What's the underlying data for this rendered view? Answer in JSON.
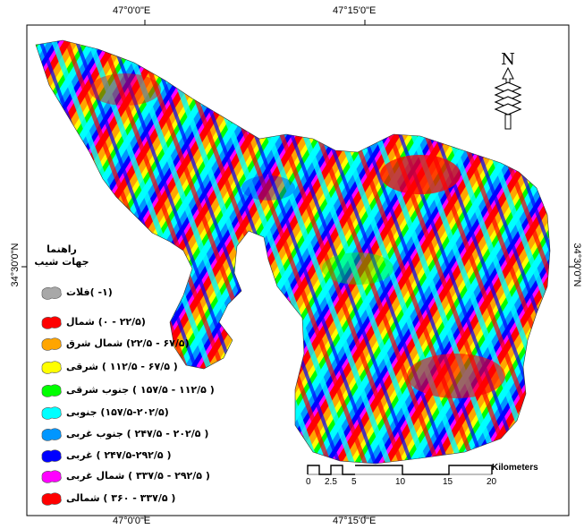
{
  "coordinates": {
    "top_left": "47°0'0\"E",
    "top_right": "47°15'0\"E",
    "bottom_left": "47°0'0\"E",
    "bottom_right": "47°15'0\"E",
    "left": "34°30'0\"N",
    "right": "34°30'0\"N"
  },
  "legend": {
    "title_line1": "راهنما",
    "title_line2": "جهات شیب",
    "items": [
      {
        "label": "(۱- )فلات",
        "color": "#a8a8a8"
      },
      {
        "label": "(۲۲/۵ - ۰) شمال",
        "color": "#ff0000"
      },
      {
        "label": "(۶۷/۵ - ۲۲/۵) شمال شرق",
        "color": "#ffa500"
      },
      {
        "label": "( ۶۷/۵ - ۱۱۲/۵ ) شرقی",
        "color": "#ffff00"
      },
      {
        "label": "( ۱۱۲/۵ - ۱۵۷/۵ ) جنوب شرقی",
        "color": "#00ff00"
      },
      {
        "label": "(۱۵۷/۵-۲۰۲/۵) جنوبی",
        "color": "#00ffff"
      },
      {
        "label": "( ۲۰۲/۵ - ۲۴۷/۵ ) جنوب غربی",
        "color": "#0096ff"
      },
      {
        "label": "( ۲۴۷/۵-۲۹۲/۵ ) غربی",
        "color": "#0000ff"
      },
      {
        "label": "( ۲۹۲/۵ - ۳۳۷/۵ ) شمال غربی",
        "color": "#ff00ff"
      },
      {
        "label": "( ۳۳۷/۵ - ۳۶۰ ) شمالی",
        "color": "#ff0000"
      }
    ]
  },
  "north": {
    "label": "N"
  },
  "scalebar": {
    "unit": "Kilometers",
    "ticks": [
      "0",
      "2.5",
      "5",
      "10",
      "15",
      "20"
    ]
  }
}
